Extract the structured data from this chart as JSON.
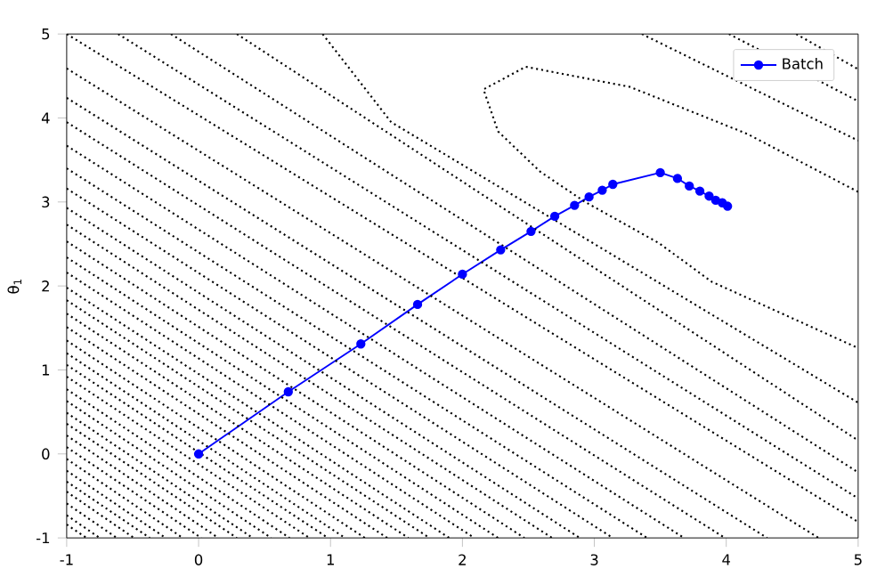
{
  "chart_data": {
    "type": "line",
    "ylabel": "θ$_{1}$",
    "xlim": [
      -1,
      5
    ],
    "ylim": [
      -1,
      5
    ],
    "xticks": [
      -1,
      0,
      1,
      2,
      3,
      4,
      5
    ],
    "yticks": [
      -1,
      0,
      1,
      2,
      3,
      4,
      5
    ],
    "legend": "top right",
    "grid": false,
    "marker": "circle",
    "series": [
      {
        "name": "Batch",
        "color": "#0000ff",
        "x": [
          0,
          0.68,
          1.23,
          1.66,
          2.0,
          2.29,
          2.52,
          2.7,
          2.85,
          2.96,
          3.06,
          3.14,
          3.5,
          3.63,
          3.72,
          3.8,
          3.87,
          3.92,
          3.97,
          4.01
        ],
        "values": [
          0,
          0.74,
          1.31,
          1.78,
          2.14,
          2.43,
          2.65,
          2.83,
          2.96,
          3.06,
          3.14,
          3.21,
          3.35,
          3.28,
          3.19,
          3.13,
          3.07,
          3.02,
          2.99,
          2.95
        ]
      },
      {
        "color": "#000000",
        "marker": "none",
        "line_style": "dotted",
        "x": [
          5,
          4.16,
          3.27,
          2.48,
          2.16,
          2.27,
          2.59,
          2.93,
          3.49,
          3.89,
          5
        ],
        "values": [
          3.12,
          3.81,
          4.37,
          4.61,
          4.34,
          3.84,
          3.36,
          3.0,
          2.51,
          2.05,
          1.26
        ]
      },
      {
        "color": "#000000",
        "marker": "none",
        "line_style": "dotted",
        "x": [
          3.36,
          5
        ],
        "values": [
          5,
          3.73
        ]
      },
      {
        "color": "#000000",
        "marker": "none",
        "line_style": "dotted",
        "x": [
          4.02,
          5
        ],
        "values": [
          5,
          4.2
        ]
      },
      {
        "color": "#000000",
        "marker": "none",
        "line_style": "dotted",
        "x": [
          4.53,
          5
        ],
        "values": [
          5,
          4.58
        ]
      },
      {
        "color": "#000000",
        "marker": "none",
        "line_style": "dotted",
        "x": [
          0.94,
          1.46,
          2.81,
          5
        ],
        "values": [
          5,
          3.95,
          2.68,
          0.61
        ]
      },
      {
        "color": "#000000",
        "marker": "none",
        "line_style": "dotted",
        "x": [
          0.29,
          5
        ],
        "values": [
          5,
          0.16
        ]
      },
      {
        "color": "#000000",
        "marker": "none",
        "line_style": "dotted",
        "x": [
          -0.21,
          5
        ],
        "values": [
          5,
          -0.22
        ]
      },
      {
        "color": "#000000",
        "marker": "none",
        "line_style": "dotted",
        "x": [
          -0.61,
          5
        ],
        "values": [
          5,
          -0.53
        ]
      },
      {
        "color": "#000000",
        "marker": "none",
        "line_style": "dotted",
        "x": [
          -1,
          5
        ],
        "values": [
          5,
          -0.81
        ]
      },
      {
        "color": "#000000",
        "marker": "none",
        "line_style": "dotted",
        "x": [
          -1,
          4.7
        ],
        "values": [
          4.59,
          -1
        ]
      },
      {
        "color": "#000000",
        "marker": "none",
        "line_style": "dotted",
        "x": [
          -1,
          4.31
        ],
        "values": [
          4.24,
          -1
        ]
      },
      {
        "color": "#000000",
        "marker": "none",
        "line_style": "dotted",
        "x": [
          -1,
          3.99
        ],
        "values": [
          3.95,
          -1
        ]
      },
      {
        "color": "#000000",
        "marker": "none",
        "line_style": "dotted",
        "x": [
          -1,
          3.68
        ],
        "values": [
          3.67,
          -1
        ]
      },
      {
        "color": "#000000",
        "marker": "none",
        "line_style": "dotted",
        "x": [
          -1,
          3.4
        ],
        "values": [
          3.4,
          -1
        ]
      },
      {
        "color": "#000000",
        "marker": "none",
        "line_style": "dotted",
        "x": [
          -1,
          3.14
        ],
        "values": [
          3.16,
          -1
        ]
      },
      {
        "color": "#000000",
        "marker": "none",
        "line_style": "dotted",
        "x": [
          -1,
          2.89
        ],
        "values": [
          2.93,
          -1
        ]
      },
      {
        "color": "#000000",
        "marker": "none",
        "line_style": "dotted",
        "x": [
          -1,
          2.68
        ],
        "values": [
          2.73,
          -1
        ]
      },
      {
        "color": "#000000",
        "marker": "none",
        "line_style": "dotted",
        "x": [
          -1,
          2.47
        ],
        "values": [
          2.53,
          -1
        ]
      },
      {
        "color": "#000000",
        "marker": "none",
        "line_style": "dotted",
        "x": [
          -1,
          2.27
        ],
        "values": [
          2.34,
          -1
        ]
      },
      {
        "color": "#000000",
        "marker": "none",
        "line_style": "dotted",
        "x": [
          -1,
          2.09
        ],
        "values": [
          2.16,
          -1
        ]
      },
      {
        "color": "#000000",
        "marker": "none",
        "line_style": "dotted",
        "x": [
          -1,
          1.9
        ],
        "values": [
          1.98,
          -1
        ]
      },
      {
        "color": "#000000",
        "marker": "none",
        "line_style": "dotted",
        "x": [
          -1,
          1.75
        ],
        "values": [
          1.83,
          -1
        ]
      },
      {
        "color": "#000000",
        "marker": "none",
        "line_style": "dotted",
        "x": [
          -1,
          1.59
        ],
        "values": [
          1.67,
          -1
        ]
      },
      {
        "color": "#000000",
        "marker": "none",
        "line_style": "dotted",
        "x": [
          -1,
          1.43
        ],
        "values": [
          1.51,
          -1
        ]
      },
      {
        "color": "#000000",
        "marker": "none",
        "line_style": "dotted",
        "x": [
          -1,
          1.26
        ],
        "values": [
          1.35,
          -1
        ]
      },
      {
        "color": "#000000",
        "marker": "none",
        "line_style": "dotted",
        "x": [
          -1,
          1.11
        ],
        "values": [
          1.2,
          -1
        ]
      },
      {
        "color": "#000000",
        "marker": "none",
        "line_style": "dotted",
        "x": [
          -1,
          0.98
        ],
        "values": [
          1.06,
          -1
        ]
      },
      {
        "color": "#000000",
        "marker": "none",
        "line_style": "dotted",
        "x": [
          -1,
          0.84
        ],
        "values": [
          0.92,
          -1
        ]
      },
      {
        "color": "#000000",
        "marker": "none",
        "line_style": "dotted",
        "x": [
          -1,
          0.69
        ],
        "values": [
          0.77,
          -1
        ]
      },
      {
        "color": "#000000",
        "marker": "none",
        "line_style": "dotted",
        "x": [
          -1,
          0.55
        ],
        "values": [
          0.63,
          -1
        ]
      },
      {
        "color": "#000000",
        "marker": "none",
        "line_style": "dotted",
        "x": [
          -1,
          0.41
        ],
        "values": [
          0.49,
          -1
        ]
      },
      {
        "color": "#000000",
        "marker": "none",
        "line_style": "dotted",
        "x": [
          -1,
          0.29
        ],
        "values": [
          0.36,
          -1
        ]
      },
      {
        "color": "#000000",
        "marker": "none",
        "line_style": "dotted",
        "x": [
          -1,
          0.15
        ],
        "values": [
          0.22,
          -1
        ]
      },
      {
        "color": "#000000",
        "marker": "none",
        "line_style": "dotted",
        "x": [
          -1,
          0.02
        ],
        "values": [
          0.08,
          -1
        ]
      },
      {
        "color": "#000000",
        "marker": "none",
        "line_style": "dotted",
        "x": [
          -1,
          -0.12
        ],
        "values": [
          -0.06,
          -1
        ]
      },
      {
        "color": "#000000",
        "marker": "none",
        "line_style": "dotted",
        "x": [
          -1,
          -0.25
        ],
        "values": [
          -0.2,
          -1
        ]
      },
      {
        "color": "#000000",
        "marker": "none",
        "line_style": "dotted",
        "x": [
          -1,
          -0.37
        ],
        "values": [
          -0.33,
          -1
        ]
      },
      {
        "color": "#000000",
        "marker": "none",
        "line_style": "dotted",
        "x": [
          -1,
          -0.49
        ],
        "values": [
          -0.45,
          -1
        ]
      },
      {
        "color": "#000000",
        "marker": "none",
        "line_style": "dotted",
        "x": [
          -1,
          -0.62
        ],
        "values": [
          -0.59,
          -1
        ]
      },
      {
        "color": "#000000",
        "marker": "none",
        "line_style": "dotted",
        "x": [
          -1,
          -0.75
        ],
        "values": [
          -0.73,
          -1
        ]
      },
      {
        "color": "#000000",
        "marker": "none",
        "line_style": "dotted",
        "x": [
          -1,
          -0.85
        ],
        "values": [
          -0.84,
          -1
        ]
      }
    ]
  }
}
